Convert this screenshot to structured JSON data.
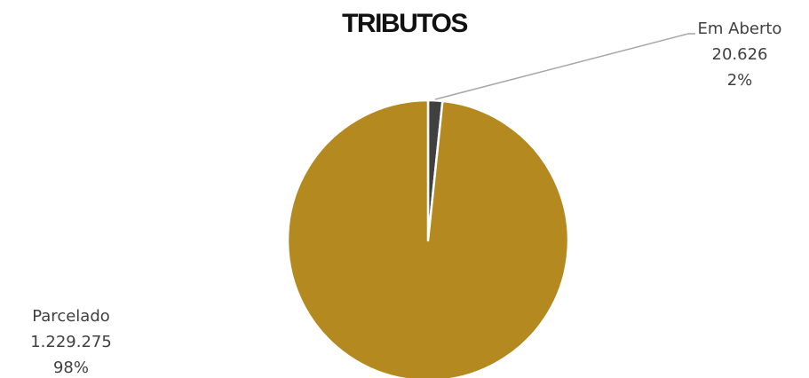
{
  "chart_data": {
    "type": "pie",
    "title": "TRIBUTOS",
    "categories": [
      "Em Aberto",
      "Parcelado"
    ],
    "values": [
      20626,
      1229275
    ],
    "value_labels": [
      "20.626",
      "1.229.275"
    ],
    "percent_labels": [
      "2%",
      "98%"
    ],
    "colors": [
      "#404040",
      "#b38920"
    ],
    "legend": "none"
  }
}
